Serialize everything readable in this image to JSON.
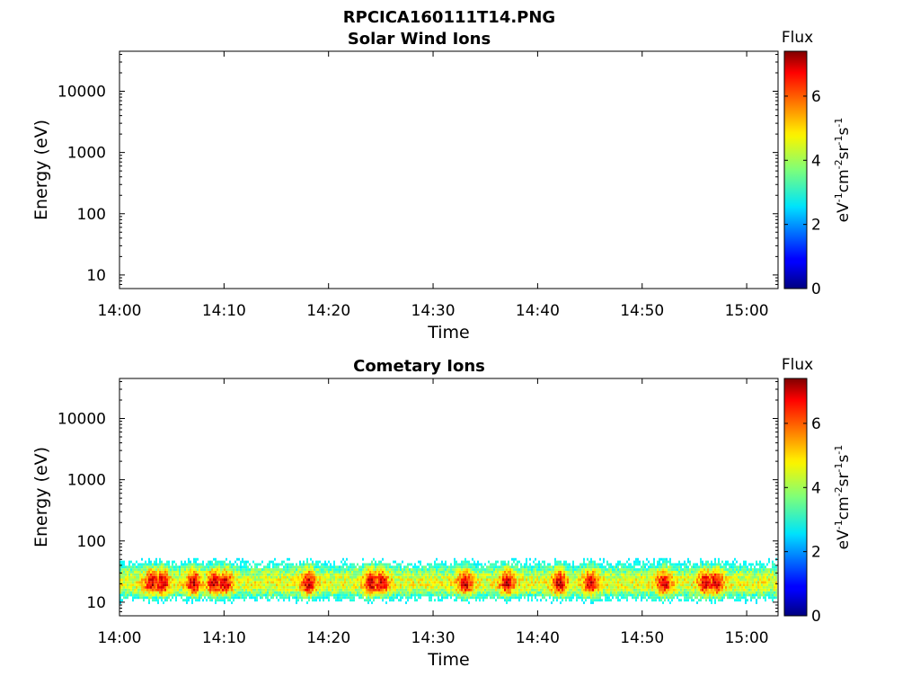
{
  "figure_title": "RPCICA160111T14.PNG",
  "chart_data": [
    {
      "type": "heatmap",
      "title": "Solar Wind Ions",
      "xlabel": "Time",
      "ylabel": "Energy (eV)",
      "xticks": [
        "14:00",
        "14:10",
        "14:20",
        "14:30",
        "14:40",
        "14:50",
        "15:00"
      ],
      "xlim": [
        "14:00",
        "15:03"
      ],
      "yscale": "log",
      "yticks": [
        10,
        100,
        1000,
        10000
      ],
      "yticklabels": [
        "10",
        "100",
        "1000",
        "10000"
      ],
      "ylim": [
        6,
        45000
      ],
      "colorbar": {
        "title": "Flux",
        "label": "eV-1cm-2sr-1s-1",
        "ticks": [
          0,
          2,
          4,
          6
        ],
        "ticklabels": [
          "0",
          "2",
          "4",
          "6"
        ],
        "range": [
          0,
          7.4
        ],
        "colormap": "jet"
      },
      "band": null
    },
    {
      "type": "heatmap",
      "title": "Cometary Ions",
      "xlabel": "Time",
      "ylabel": "Energy (eV)",
      "xticks": [
        "14:00",
        "14:10",
        "14:20",
        "14:30",
        "14:40",
        "14:50",
        "15:00"
      ],
      "xlim": [
        "14:00",
        "15:03"
      ],
      "yscale": "log",
      "yticks": [
        10,
        100,
        1000,
        10000
      ],
      "yticklabels": [
        "10",
        "100",
        "1000",
        "10000"
      ],
      "ylim": [
        6,
        45000
      ],
      "colorbar": {
        "title": "Flux",
        "label": "eV-1cm-2sr-1s-1",
        "ticks": [
          0,
          2,
          4,
          6
        ],
        "ticklabels": [
          "0",
          "2",
          "4",
          "6"
        ],
        "range": [
          0,
          7.4
        ],
        "colormap": "jet"
      },
      "band": {
        "energy_range": [
          7,
          85
        ],
        "peak_energy": 20,
        "typical_flux": 4.5,
        "max_flux": 6.8,
        "time_range": [
          "14:00",
          "15:03"
        ],
        "peak_times": [
          "14:03",
          "14:04",
          "14:07",
          "14:09",
          "14:10",
          "14:18",
          "14:24",
          "14:25",
          "14:33",
          "14:37",
          "14:42",
          "14:45",
          "14:52",
          "14:56",
          "14:57"
        ]
      }
    }
  ]
}
